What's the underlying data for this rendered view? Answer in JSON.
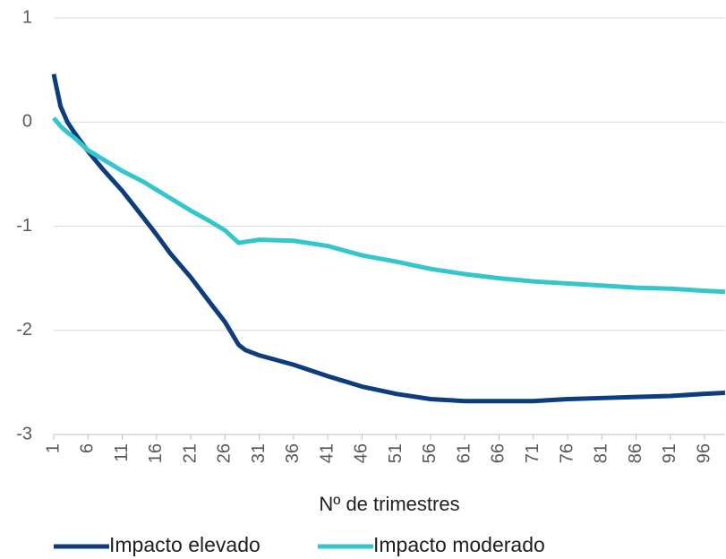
{
  "chart_data": {
    "type": "line",
    "x_label": "Nº de trimestres",
    "x": [
      1,
      2,
      3,
      4,
      6,
      8,
      11,
      14,
      16,
      18,
      21,
      24,
      26,
      28,
      29,
      31,
      36,
      41,
      46,
      51,
      56,
      61,
      66,
      71,
      76,
      81,
      86,
      91,
      96,
      99
    ],
    "series": [
      {
        "name": "Impacto elevado",
        "color": "#0d3d7d",
        "values": [
          0.46,
          0.15,
          0.0,
          -0.1,
          -0.28,
          -0.44,
          -0.66,
          -0.91,
          -1.08,
          -1.26,
          -1.49,
          -1.75,
          -1.92,
          -2.14,
          -2.19,
          -2.24,
          -2.33,
          -2.44,
          -2.54,
          -2.61,
          -2.66,
          -2.68,
          -2.68,
          -2.68,
          -2.66,
          -2.65,
          -2.64,
          -2.63,
          -2.61,
          -2.6
        ]
      },
      {
        "name": "Impacto moderado",
        "color": "#35c6cb",
        "values": [
          0.04,
          -0.04,
          -0.1,
          -0.15,
          -0.27,
          -0.35,
          -0.47,
          -0.57,
          -0.65,
          -0.73,
          -0.85,
          -0.96,
          -1.04,
          -1.16,
          -1.15,
          -1.13,
          -1.14,
          -1.19,
          -1.28,
          -1.34,
          -1.41,
          -1.46,
          -1.5,
          -1.53,
          -1.55,
          -1.57,
          -1.59,
          -1.6,
          -1.62,
          -1.63
        ]
      }
    ],
    "xlim": [
      1,
      99
    ],
    "xticks": [
      1,
      6,
      11,
      16,
      21,
      26,
      31,
      36,
      41,
      46,
      51,
      56,
      61,
      66,
      71,
      76,
      81,
      86,
      91,
      96
    ],
    "ylim": [
      -3,
      1
    ],
    "yticks": [
      -3,
      -2,
      -1,
      0,
      1
    ],
    "grid": true,
    "legend": "bottom"
  }
}
